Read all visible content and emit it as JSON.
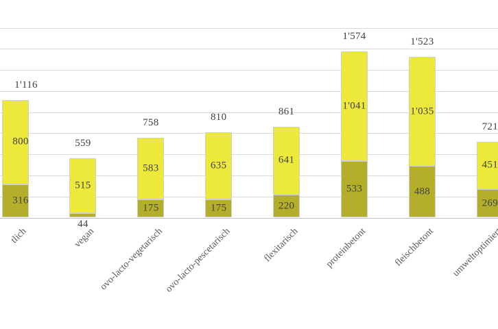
{
  "chart_data": {
    "type": "bar",
    "stacked": true,
    "title": "",
    "xlabel": "",
    "ylabel": "",
    "grid": true,
    "legend": "none",
    "ylim": [
      0,
      1800
    ],
    "grid_step": 200,
    "categories": [
      "tlich",
      "vegan",
      "ovo-lacto-vegetarisch",
      "ovo-lacto-pescetarisch",
      "flexitarisch",
      "proteinbetont",
      "fleischbetont",
      "umweltoptimiert"
    ],
    "series": [
      {
        "name": "lower-segment",
        "color": "#b3af2b",
        "values": [
          316,
          44,
          175,
          175,
          220,
          533,
          488,
          269
        ],
        "labels": [
          "316",
          "44",
          "175",
          "175",
          "220",
          "533",
          "488",
          "269"
        ]
      },
      {
        "name": "upper-segment",
        "color": "#ece93a",
        "values": [
          800,
          515,
          583,
          635,
          641,
          1041,
          1035,
          451
        ],
        "labels": [
          "800",
          "515",
          "583",
          "635",
          "641",
          "1'041",
          "1'035",
          "451"
        ]
      }
    ],
    "totals": [
      1116,
      559,
      758,
      810,
      861,
      1574,
      1523,
      721
    ],
    "total_labels": [
      "1'116",
      "559",
      "758",
      "810",
      "861",
      "1'574",
      "1'523",
      "721"
    ]
  },
  "colors": {
    "background": "#ffffff",
    "gridline": "#d9d9d9",
    "axis_line": "#c6c6c6",
    "bar_border": "#cfcfcf",
    "value_text": "#404040",
    "category_text": "#595959",
    "segment_lower": "#b3af2b",
    "segment_upper": "#ece93a"
  }
}
